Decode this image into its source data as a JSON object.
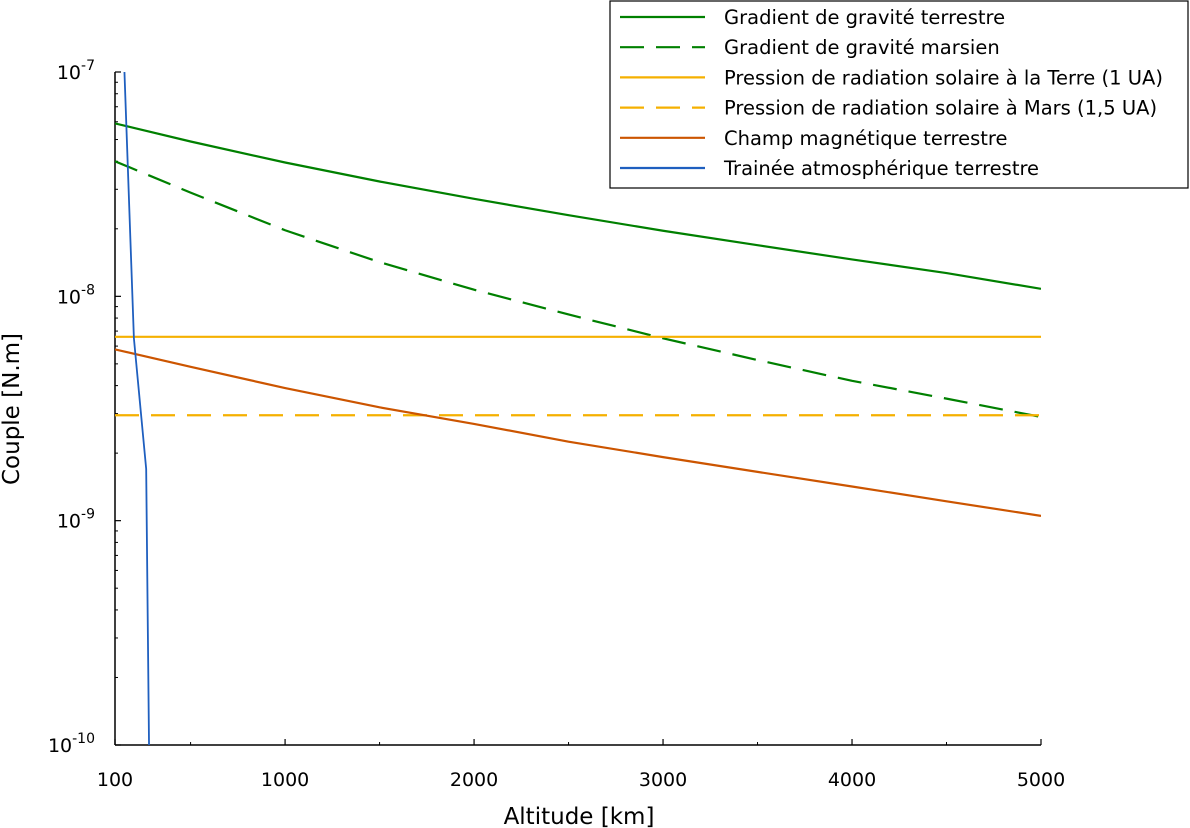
{
  "chart_data": {
    "type": "line",
    "xlabel": "Altitude [km]",
    "ylabel": "Couple [N.m]",
    "xlim": [
      100,
      5000
    ],
    "ylim": [
      1e-10,
      1e-07
    ],
    "yscale": "log",
    "grid": false,
    "legend_position": "top-right",
    "x_ticks": [
      {
        "value": 100,
        "label": "100"
      },
      {
        "value": 1000,
        "label": "1000"
      },
      {
        "value": 2000,
        "label": "2000"
      },
      {
        "value": 3000,
        "label": "3000"
      },
      {
        "value": 4000,
        "label": "4000"
      },
      {
        "value": 5000,
        "label": "5000"
      }
    ],
    "y_ticks": [
      {
        "value": 1e-10,
        "base": "10",
        "exp": "-10"
      },
      {
        "value": 1e-09,
        "base": "10",
        "exp": "-9"
      },
      {
        "value": 1e-08,
        "base": "10",
        "exp": "-8"
      },
      {
        "value": 1e-07,
        "base": "10",
        "exp": "-7"
      }
    ],
    "series": [
      {
        "name": "Gradient de gravité terrestre",
        "color": "#008000",
        "dash": "solid",
        "x": [
          100,
          500,
          1000,
          1500,
          2000,
          2500,
          3000,
          3500,
          4000,
          4500,
          5000
        ],
        "y": [
          5.9e-08,
          4.9e-08,
          3.95e-08,
          3.25e-08,
          2.72e-08,
          2.3e-08,
          1.96e-08,
          1.69e-08,
          1.46e-08,
          1.27e-08,
          1.08e-08
        ]
      },
      {
        "name": "Gradient de gravité marsien",
        "color": "#008000",
        "dash": "dashed",
        "x": [
          100,
          500,
          1000,
          1500,
          2000,
          2500,
          3000,
          3500,
          4000,
          4500,
          5000
        ],
        "y": [
          4e-08,
          2.9e-08,
          1.97e-08,
          1.42e-08,
          1.07e-08,
          8.3e-09,
          6.5e-09,
          5.2e-09,
          4.2e-09,
          3.5e-09,
          2.9e-09
        ]
      },
      {
        "name": "Pression de radiation solaire à la Terre (1 UA)",
        "color": "#f5b000",
        "dash": "solid",
        "x": [
          100,
          5000
        ],
        "y": [
          6.6e-09,
          6.6e-09
        ]
      },
      {
        "name": "Pression de radiation solaire à Mars (1,5 UA)",
        "color": "#f5b000",
        "dash": "dashed",
        "x": [
          100,
          5000
        ],
        "y": [
          2.95e-09,
          2.95e-09
        ]
      },
      {
        "name": "Champ magnétique terrestre",
        "color": "#cc5500",
        "dash": "solid",
        "x": [
          100,
          500,
          1000,
          1500,
          2000,
          2500,
          3000,
          3500,
          4000,
          4500,
          5000
        ],
        "y": [
          5.8e-09,
          4.85e-09,
          3.9e-09,
          3.2e-09,
          2.7e-09,
          2.25e-09,
          1.92e-09,
          1.65e-09,
          1.42e-09,
          1.22e-09,
          1.05e-09
        ]
      },
      {
        "name": "Trainée atmosphérique terrestre",
        "color": "#1f5fbf",
        "dash": "solid",
        "x": [
          150,
          200,
          265,
          280
        ],
        "y": [
          1e-07,
          6.5e-09,
          1.7e-09,
          1e-10
        ]
      }
    ]
  }
}
